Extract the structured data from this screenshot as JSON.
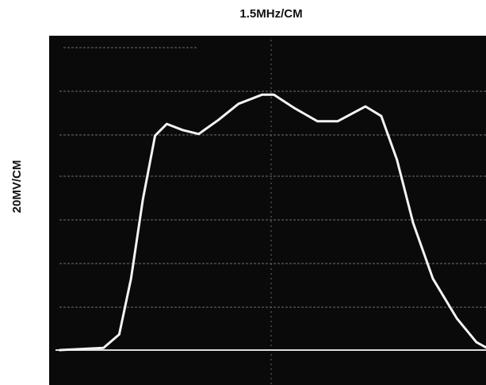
{
  "chart_data": {
    "type": "line",
    "title": "1.5MHz/CM",
    "y_label": "20MV/CM",
    "x": [
      -4.85,
      -3.85,
      -3.49,
      -3.22,
      -2.95,
      -2.67,
      -2.4,
      -2.04,
      -1.67,
      -1.22,
      -0.76,
      -0.22,
      0.05,
      0.51,
      1.05,
      1.51,
      2.15,
      2.51,
      2.87,
      3.24,
      3.69,
      4.24,
      4.69,
      4.93
    ],
    "values": [
      0,
      0.05,
      0.36,
      1.64,
      3.45,
      4.91,
      5.18,
      5.04,
      4.95,
      5.27,
      5.64,
      5.85,
      5.85,
      5.55,
      5.24,
      5.24,
      5.58,
      5.36,
      4.36,
      2.91,
      1.64,
      0.73,
      0.18,
      0.05
    ],
    "color": "#f4f4f4",
    "xlim": [
      -4.95,
      5.0
    ],
    "ylim": [
      -0.8,
      7.2
    ]
  }
}
